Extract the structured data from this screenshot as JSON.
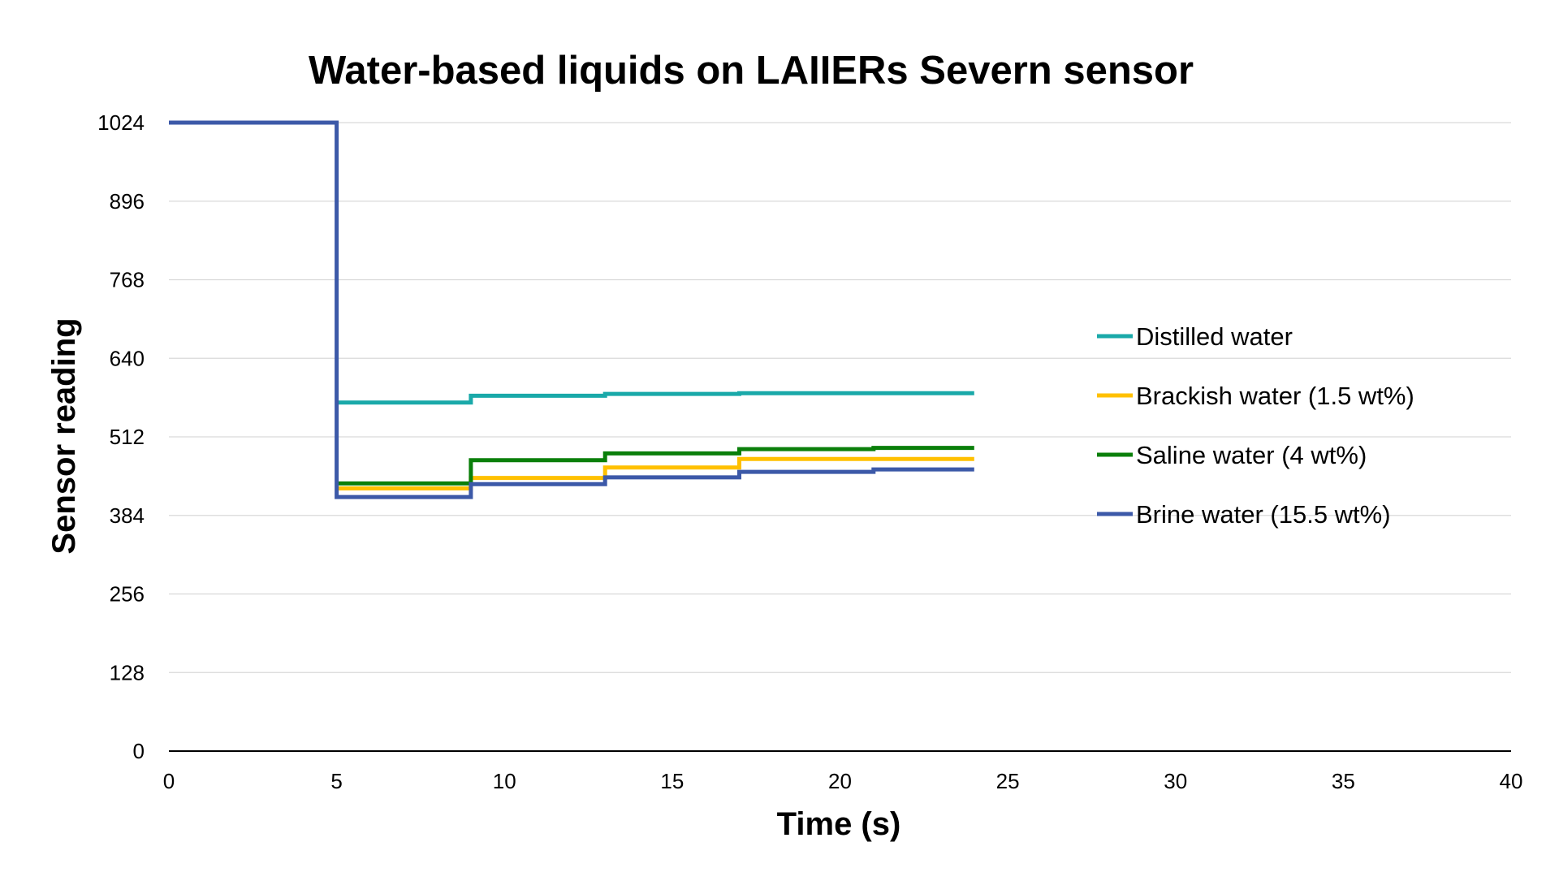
{
  "chart_data": {
    "type": "line",
    "step": true,
    "title": "Water-based liquids on LAIIERs Severn sensor",
    "xlabel": "Time (s)",
    "ylabel": "Sensor reading",
    "xlim": [
      0,
      40
    ],
    "ylim": [
      0,
      1024
    ],
    "x_ticks": [
      0,
      5,
      10,
      15,
      20,
      25,
      30,
      35,
      40
    ],
    "y_ticks": [
      0,
      128,
      256,
      384,
      512,
      640,
      768,
      896,
      1024
    ],
    "grid": "horizontal",
    "legend_position": "right",
    "series": [
      {
        "name": "Distilled water",
        "color": "#1aa9a9",
        "points": [
          [
            5,
            568
          ],
          [
            9,
            579
          ],
          [
            13,
            582
          ],
          [
            17,
            583
          ],
          [
            21,
            583
          ],
          [
            24,
            583
          ]
        ]
      },
      {
        "name": "Brackish water (1.5 wt%)",
        "color": "#ffc000",
        "points": [
          [
            5,
            428
          ],
          [
            9,
            445
          ],
          [
            13,
            462
          ],
          [
            17,
            476
          ],
          [
            21,
            476
          ],
          [
            24,
            476
          ]
        ]
      },
      {
        "name": "Saline water (4 wt%)",
        "color": "#0a7f0a",
        "points": [
          [
            5,
            436
          ],
          [
            9,
            474
          ],
          [
            13,
            485
          ],
          [
            17,
            492
          ],
          [
            21,
            494
          ],
          [
            24,
            494
          ]
        ]
      },
      {
        "name": "Brine water (15.5 wt%)",
        "color": "#3c59a8",
        "points": [
          [
            0,
            1024
          ],
          [
            5,
            1024
          ],
          [
            5,
            414
          ],
          [
            9,
            435
          ],
          [
            13,
            446
          ],
          [
            17,
            455
          ],
          [
            21,
            459
          ],
          [
            24,
            459
          ]
        ]
      }
    ]
  }
}
